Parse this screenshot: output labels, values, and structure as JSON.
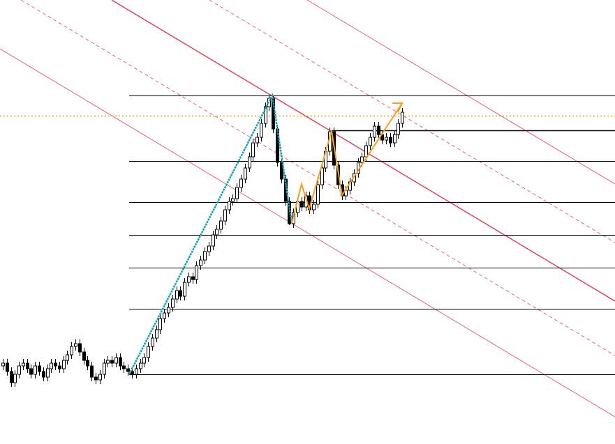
{
  "chart_data": {
    "type": "candlestick",
    "ylim": [
      -25,
      134.25
    ],
    "up_color": "#ffffff",
    "down_color": "#000000",
    "wick_color": "#000000",
    "fib_levels": [
      0,
      23.6,
      38.2,
      50,
      61.8,
      76.4,
      100
    ],
    "fib_color": "#000000",
    "horizontal_lines": [
      {
        "value": 92.75,
        "color": "#f5a01e",
        "style": "dotted"
      },
      {
        "value": 87.5,
        "color": "#000000",
        "style": "solid"
      }
    ],
    "candles": [
      [
        3,
        5.5,
        1.5,
        4
      ],
      [
        4,
        5.5,
        -0.5,
        1
      ],
      [
        1,
        2.5,
        -4.5,
        -3
      ],
      [
        -3,
        1.5,
        -4.5,
        0
      ],
      [
        0,
        4.5,
        -1.5,
        3
      ],
      [
        3,
        5.5,
        1.5,
        4
      ],
      [
        4,
        5.5,
        0.5,
        2
      ],
      [
        2,
        3.5,
        -1.5,
        0
      ],
      [
        0,
        4.5,
        -1.5,
        3
      ],
      [
        3,
        4.5,
        -0.5,
        1
      ],
      [
        1,
        2.5,
        -2.5,
        -1
      ],
      [
        -1,
        3.5,
        -2.5,
        2
      ],
      [
        2,
        5.5,
        0.5,
        4
      ],
      [
        4,
        5.5,
        1.5,
        3
      ],
      [
        3,
        4.5,
        0.5,
        2
      ],
      [
        2,
        6.5,
        0.5,
        5
      ],
      [
        5,
        8.5,
        3.5,
        7
      ],
      [
        7,
        11.5,
        5.5,
        10
      ],
      [
        10,
        12.5,
        8.5,
        11
      ],
      [
        11,
        12.5,
        6.5,
        8
      ],
      [
        8,
        9.5,
        3.5,
        5
      ],
      [
        5,
        6.5,
        1.5,
        3
      ],
      [
        3,
        4.5,
        -2.5,
        -1
      ],
      [
        -1,
        0.5,
        -3.5,
        -2
      ],
      [
        -2,
        1.5,
        -3.5,
        0
      ],
      [
        0,
        5.5,
        -1.5,
        4
      ],
      [
        4,
        6.5,
        2.5,
        5
      ],
      [
        5,
        6.5,
        2.5,
        4
      ],
      [
        4,
        7.5,
        2.5,
        6
      ],
      [
        6,
        7.5,
        1.5,
        3
      ],
      [
        3,
        4.5,
        0.5,
        2
      ],
      [
        2,
        3.5,
        -0.5,
        1
      ],
      [
        1,
        2.5,
        -1.5,
        0
      ],
      [
        0,
        3.5,
        -1.5,
        2
      ],
      [
        2,
        5.5,
        0.5,
        4
      ],
      [
        4,
        7.5,
        2.5,
        6
      ],
      [
        6,
        11.5,
        4.5,
        10
      ],
      [
        10,
        14.5,
        8.5,
        13
      ],
      [
        13,
        17.5,
        11.5,
        16
      ],
      [
        16,
        21.5,
        14.5,
        20
      ],
      [
        20,
        23.5,
        18.5,
        22
      ],
      [
        22,
        25.5,
        20.5,
        24
      ],
      [
        24,
        28.5,
        22.5,
        27
      ],
      [
        27,
        31.5,
        25.5,
        30
      ],
      [
        30,
        31.5,
        26.5,
        28
      ],
      [
        28,
        34.5,
        26.5,
        33
      ],
      [
        33,
        36.5,
        31.5,
        35
      ],
      [
        35,
        36.5,
        32.5,
        34
      ],
      [
        34,
        40.5,
        32.5,
        39
      ],
      [
        39,
        42.5,
        37.5,
        41
      ],
      [
        41,
        45.5,
        39.5,
        44
      ],
      [
        44,
        47.5,
        42.5,
        46
      ],
      [
        46,
        51.5,
        44.5,
        50
      ],
      [
        50,
        53.5,
        48.5,
        52
      ],
      [
        52,
        56.5,
        50.5,
        55
      ],
      [
        55,
        60.5,
        53.5,
        59
      ],
      [
        59,
        63.5,
        57.5,
        62
      ],
      [
        62,
        64.5,
        60.5,
        63
      ],
      [
        63,
        68.5,
        61.5,
        67
      ],
      [
        67,
        71.5,
        65.5,
        70
      ],
      [
        70,
        75.5,
        68.5,
        74
      ],
      [
        74,
        79.5,
        72.5,
        78
      ],
      [
        78,
        84.5,
        76.5,
        83
      ],
      [
        83,
        86.5,
        81.5,
        85
      ],
      [
        85,
        91.5,
        83.5,
        90
      ],
      [
        90,
        97.5,
        88.5,
        96
      ],
      [
        96,
        100,
        94.5,
        99
      ],
      [
        99,
        100,
        86.5,
        88
      ],
      [
        88,
        89.5,
        74.5,
        76
      ],
      [
        76,
        77.5,
        68.5,
        70
      ],
      [
        70,
        71.5,
        60.5,
        62
      ],
      [
        62,
        63.5,
        53.5,
        54
      ],
      [
        54,
        59.5,
        52.5,
        58
      ],
      [
        58,
        63.5,
        56.5,
        62
      ],
      [
        62,
        63.5,
        58.5,
        60
      ],
      [
        60,
        65.5,
        58.5,
        64
      ],
      [
        64,
        65.5,
        57.5,
        59
      ],
      [
        59,
        62.5,
        57.5,
        61
      ],
      [
        61,
        69.5,
        59.5,
        68
      ],
      [
        68,
        75.5,
        66.5,
        74
      ],
      [
        74,
        81.5,
        72.5,
        80
      ],
      [
        80,
        88.5,
        78.5,
        87
      ],
      [
        87,
        88.5,
        73.5,
        75
      ],
      [
        75,
        76.5,
        66.5,
        68
      ],
      [
        68,
        69.5,
        62.5,
        64
      ],
      [
        64,
        67.5,
        62.5,
        66
      ],
      [
        66,
        70.5,
        64.5,
        69
      ],
      [
        69,
        73.5,
        67.5,
        72
      ],
      [
        72,
        77.5,
        70.5,
        76
      ],
      [
        76,
        79.5,
        74.5,
        78
      ],
      [
        78,
        83.5,
        76.5,
        82
      ],
      [
        82,
        86.5,
        80.5,
        85
      ],
      [
        85,
        90.5,
        83.5,
        89
      ],
      [
        89,
        90.5,
        84.5,
        86
      ],
      [
        86,
        87.5,
        82.5,
        84
      ],
      [
        84,
        86.5,
        82.5,
        85
      ],
      [
        85,
        86.5,
        81.5,
        83
      ],
      [
        83,
        87.5,
        81.5,
        86
      ],
      [
        86,
        91.5,
        84.5,
        90
      ],
      [
        90,
        95.5,
        88.5,
        94
      ]
    ]
  }
}
